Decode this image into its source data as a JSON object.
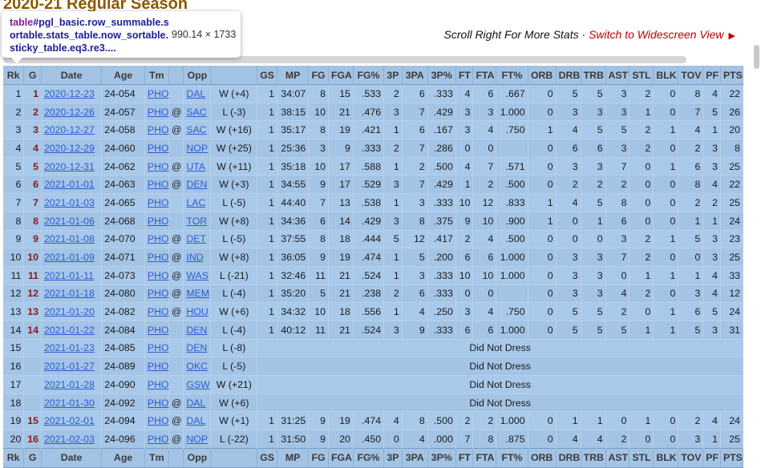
{
  "section_title": "2020-21 Regular Season",
  "tooltip": {
    "tag": "table",
    "selector": "#pgl_basic.row_summable.sortable.stats_table.now_sortable.sticky_table.eq3.re3....",
    "dimensions": "990.14 × 1733"
  },
  "scroll_hint": {
    "text": "Scroll Right For More Stats",
    "separator": " · ",
    "widescreen_link": "Switch to Widescreen View",
    "arrow": "▶"
  },
  "columns": [
    "Rk",
    "G",
    "Date",
    "Age",
    "Tm",
    "",
    "Opp",
    "",
    "GS",
    "MP",
    "FG",
    "FGA",
    "FG%",
    "3P",
    "3PA",
    "3P%",
    "FT",
    "FTA",
    "FT%",
    "ORB",
    "DRB",
    "TRB",
    "AST",
    "STL",
    "BLK",
    "TOV",
    "PF",
    "PTS"
  ],
  "rows": [
    {
      "rk": "1",
      "g": "1",
      "date": "2020-12-23",
      "age": "24-054",
      "tm": "PHO",
      "at": "",
      "opp": "DAL",
      "res": "W (+4)",
      "stats": [
        "1",
        "34:07",
        "8",
        "15",
        ".533",
        "2",
        "6",
        ".333",
        "4",
        "6",
        ".667",
        "0",
        "5",
        "5",
        "3",
        "2",
        "0",
        "8",
        "4",
        "22"
      ]
    },
    {
      "rk": "2",
      "g": "2",
      "date": "2020-12-26",
      "age": "24-057",
      "tm": "PHO",
      "at": "@",
      "opp": "SAC",
      "res": "L (-3)",
      "stats": [
        "1",
        "38:15",
        "10",
        "21",
        ".476",
        "3",
        "7",
        ".429",
        "3",
        "3",
        "1.000",
        "0",
        "3",
        "3",
        "3",
        "1",
        "0",
        "7",
        "5",
        "26"
      ]
    },
    {
      "rk": "3",
      "g": "3",
      "date": "2020-12-27",
      "age": "24-058",
      "tm": "PHO",
      "at": "@",
      "opp": "SAC",
      "res": "W (+16)",
      "stats": [
        "1",
        "35:17",
        "8",
        "19",
        ".421",
        "1",
        "6",
        ".167",
        "3",
        "4",
        ".750",
        "1",
        "4",
        "5",
        "5",
        "2",
        "1",
        "4",
        "1",
        "20"
      ]
    },
    {
      "rk": "4",
      "g": "4",
      "date": "2020-12-29",
      "age": "24-060",
      "tm": "PHO",
      "at": "",
      "opp": "NOP",
      "res": "W (+25)",
      "stats": [
        "1",
        "25:36",
        "3",
        "9",
        ".333",
        "2",
        "7",
        ".286",
        "0",
        "0",
        "",
        "0",
        "6",
        "6",
        "3",
        "2",
        "0",
        "2",
        "3",
        "8"
      ]
    },
    {
      "rk": "5",
      "g": "5",
      "date": "2020-12-31",
      "age": "24-062",
      "tm": "PHO",
      "at": "@",
      "opp": "UTA",
      "res": "W (+11)",
      "stats": [
        "1",
        "35:18",
        "10",
        "17",
        ".588",
        "1",
        "2",
        ".500",
        "4",
        "7",
        ".571",
        "0",
        "3",
        "3",
        "7",
        "0",
        "1",
        "6",
        "3",
        "25"
      ]
    },
    {
      "rk": "6",
      "g": "6",
      "date": "2021-01-01",
      "age": "24-063",
      "tm": "PHO",
      "at": "@",
      "opp": "DEN",
      "res": "W (+3)",
      "stats": [
        "1",
        "34:55",
        "9",
        "17",
        ".529",
        "3",
        "7",
        ".429",
        "1",
        "2",
        ".500",
        "0",
        "2",
        "2",
        "2",
        "0",
        "0",
        "8",
        "4",
        "22"
      ]
    },
    {
      "rk": "7",
      "g": "7",
      "date": "2021-01-03",
      "age": "24-065",
      "tm": "PHO",
      "at": "",
      "opp": "LAC",
      "res": "L (-5)",
      "stats": [
        "1",
        "44:40",
        "7",
        "13",
        ".538",
        "1",
        "3",
        ".333",
        "10",
        "12",
        ".833",
        "1",
        "4",
        "5",
        "8",
        "0",
        "0",
        "2",
        "2",
        "25"
      ]
    },
    {
      "rk": "8",
      "g": "8",
      "date": "2021-01-06",
      "age": "24-068",
      "tm": "PHO",
      "at": "",
      "opp": "TOR",
      "res": "W (+8)",
      "stats": [
        "1",
        "34:36",
        "6",
        "14",
        ".429",
        "3",
        "8",
        ".375",
        "9",
        "10",
        ".900",
        "1",
        "0",
        "1",
        "6",
        "0",
        "0",
        "1",
        "1",
        "24"
      ]
    },
    {
      "rk": "9",
      "g": "9",
      "date": "2021-01-08",
      "age": "24-070",
      "tm": "PHO",
      "at": "@",
      "opp": "DET",
      "res": "L (-5)",
      "stats": [
        "1",
        "37:55",
        "8",
        "18",
        ".444",
        "5",
        "12",
        ".417",
        "2",
        "4",
        ".500",
        "0",
        "0",
        "0",
        "3",
        "2",
        "1",
        "5",
        "3",
        "23"
      ]
    },
    {
      "rk": "10",
      "g": "10",
      "date": "2021-01-09",
      "age": "24-071",
      "tm": "PHO",
      "at": "@",
      "opp": "IND",
      "res": "W (+8)",
      "stats": [
        "1",
        "36:05",
        "9",
        "19",
        ".474",
        "1",
        "5",
        ".200",
        "6",
        "6",
        "1.000",
        "0",
        "3",
        "3",
        "7",
        "2",
        "0",
        "0",
        "3",
        "25"
      ]
    },
    {
      "rk": "11",
      "g": "11",
      "date": "2021-01-11",
      "age": "24-073",
      "tm": "PHO",
      "at": "@",
      "opp": "WAS",
      "res": "L (-21)",
      "stats": [
        "1",
        "32:46",
        "11",
        "21",
        ".524",
        "1",
        "3",
        ".333",
        "10",
        "10",
        "1.000",
        "0",
        "3",
        "3",
        "0",
        "1",
        "1",
        "1",
        "4",
        "33"
      ]
    },
    {
      "rk": "12",
      "g": "12",
      "date": "2021-01-18",
      "age": "24-080",
      "tm": "PHO",
      "at": "@",
      "opp": "MEM",
      "res": "L (-4)",
      "stats": [
        "1",
        "35:20",
        "5",
        "21",
        ".238",
        "2",
        "6",
        ".333",
        "0",
        "0",
        "",
        "0",
        "3",
        "3",
        "4",
        "2",
        "0",
        "3",
        "4",
        "12"
      ]
    },
    {
      "rk": "13",
      "g": "13",
      "date": "2021-01-20",
      "age": "24-082",
      "tm": "PHO",
      "at": "@",
      "opp": "HOU",
      "res": "W (+6)",
      "stats": [
        "1",
        "34:32",
        "10",
        "18",
        ".556",
        "1",
        "4",
        ".250",
        "3",
        "4",
        ".750",
        "0",
        "5",
        "5",
        "2",
        "0",
        "1",
        "6",
        "5",
        "24"
      ]
    },
    {
      "rk": "14",
      "g": "14",
      "date": "2021-01-22",
      "age": "24-084",
      "tm": "PHO",
      "at": "",
      "opp": "DEN",
      "res": "L (-4)",
      "stats": [
        "1",
        "40:12",
        "11",
        "21",
        ".524",
        "3",
        "9",
        ".333",
        "6",
        "6",
        "1.000",
        "0",
        "5",
        "5",
        "5",
        "1",
        "1",
        "5",
        "3",
        "31"
      ]
    },
    {
      "rk": "15",
      "g": "",
      "date": "2021-01-23",
      "age": "24-085",
      "tm": "PHO",
      "at": "",
      "opp": "DEN",
      "res": "L (-8)",
      "dnp": "Did Not Dress"
    },
    {
      "rk": "16",
      "g": "",
      "date": "2021-01-27",
      "age": "24-089",
      "tm": "PHO",
      "at": "",
      "opp": "OKC",
      "res": "L (-5)",
      "dnp": "Did Not Dress"
    },
    {
      "rk": "17",
      "g": "",
      "date": "2021-01-28",
      "age": "24-090",
      "tm": "PHO",
      "at": "",
      "opp": "GSW",
      "res": "W (+21)",
      "dnp": "Did Not Dress"
    },
    {
      "rk": "18",
      "g": "",
      "date": "2021-01-30",
      "age": "24-092",
      "tm": "PHO",
      "at": "@",
      "opp": "DAL",
      "res": "W (+6)",
      "dnp": "Did Not Dress"
    },
    {
      "rk": "19",
      "g": "15",
      "date": "2021-02-01",
      "age": "24-094",
      "tm": "PHO",
      "at": "@",
      "opp": "DAL",
      "res": "W (+1)",
      "stats": [
        "1",
        "31:25",
        "9",
        "19",
        ".474",
        "4",
        "8",
        ".500",
        "2",
        "2",
        "1.000",
        "0",
        "1",
        "1",
        "0",
        "1",
        "0",
        "2",
        "4",
        "24"
      ]
    },
    {
      "rk": "20",
      "g": "16",
      "date": "2021-02-03",
      "age": "24-096",
      "tm": "PHO",
      "at": "@",
      "opp": "NOP",
      "res": "L (-22)",
      "stats": [
        "1",
        "31:50",
        "9",
        "20",
        ".450",
        "0",
        "4",
        ".000",
        "7",
        "8",
        ".875",
        "0",
        "4",
        "4",
        "2",
        "0",
        "0",
        "3",
        "1",
        "25"
      ]
    }
  ],
  "colors": {
    "table_bg": "#a8c8e8",
    "link": "#2f5ccc",
    "accent": "#b00000",
    "title": "#8a5a00"
  }
}
